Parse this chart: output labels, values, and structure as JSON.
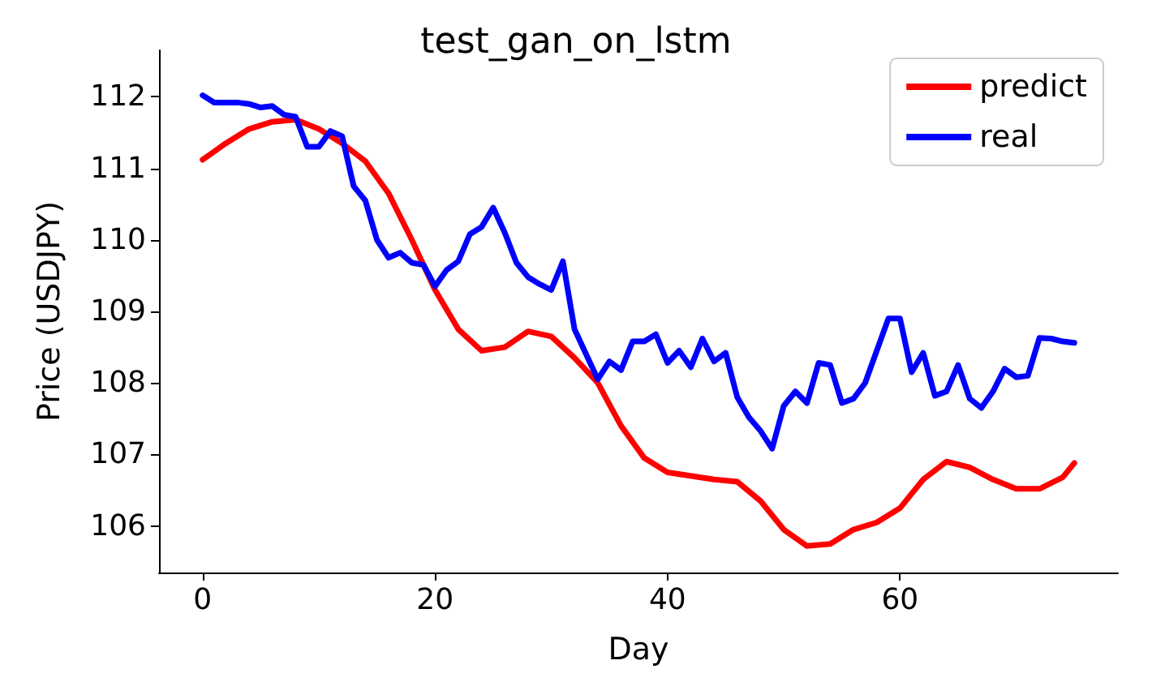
{
  "chart_data": {
    "type": "line",
    "title": "test_gan_on_lstm",
    "xlabel": "Day",
    "ylabel": "Price (USDJPY)",
    "xlim": [
      -3.75,
      78.75
    ],
    "xticks": [
      0,
      20,
      40,
      60
    ],
    "ylim": [
      105.35,
      112.65
    ],
    "yticks": [
      106,
      107,
      108,
      109,
      110,
      111,
      112
    ],
    "legend": "top right",
    "grid": false,
    "marker": "none",
    "line_style": "solid",
    "series": [
      {
        "name": "predict",
        "color": "#ff0000",
        "x": [
          0,
          2,
          4,
          6,
          8,
          10,
          12,
          14,
          16,
          18,
          20,
          22,
          24,
          26,
          28,
          30,
          32,
          34,
          36,
          38,
          40,
          44,
          46,
          48,
          50,
          52,
          54,
          56,
          58,
          60,
          62,
          64,
          66,
          68,
          70,
          72,
          74,
          75
        ],
        "values": [
          111.12,
          111.35,
          111.55,
          111.65,
          111.68,
          111.55,
          111.35,
          111.1,
          110.65,
          110.0,
          109.3,
          108.75,
          108.45,
          108.5,
          108.72,
          108.65,
          108.35,
          108.0,
          107.4,
          106.95,
          106.75,
          106.65,
          106.62,
          106.35,
          105.95,
          105.72,
          105.75,
          105.95,
          106.05,
          106.25,
          106.65,
          106.9,
          106.82,
          106.65,
          106.52,
          106.52,
          106.68,
          106.88
        ]
      },
      {
        "name": "real",
        "color": "#0000ff",
        "x": [
          0,
          1,
          2,
          3,
          4,
          5,
          6,
          7,
          8,
          9,
          10,
          11,
          12,
          13,
          14,
          15,
          16,
          17,
          18,
          19,
          20,
          21,
          22,
          23,
          24,
          25,
          26,
          27,
          28,
          29,
          30,
          31,
          32,
          33,
          34,
          35,
          36,
          37,
          38,
          39,
          40,
          41,
          42,
          43,
          44,
          45,
          46,
          47,
          48,
          49,
          50,
          51,
          52,
          53,
          54,
          55,
          56,
          57,
          58,
          59,
          60,
          61,
          62,
          63,
          64,
          65,
          66,
          67,
          68,
          69,
          70,
          71,
          72,
          73,
          74,
          75
        ],
        "values": [
          112.02,
          111.92,
          111.92,
          111.92,
          111.9,
          111.85,
          111.87,
          111.75,
          111.72,
          111.3,
          111.3,
          111.52,
          111.45,
          110.75,
          110.55,
          110.0,
          109.75,
          109.82,
          109.68,
          109.65,
          109.35,
          109.58,
          109.7,
          110.08,
          110.18,
          110.45,
          110.1,
          109.68,
          109.48,
          109.38,
          109.3,
          109.7,
          108.75,
          108.4,
          108.05,
          108.3,
          108.18,
          108.58,
          108.58,
          108.68,
          108.28,
          108.45,
          108.22,
          108.62,
          108.3,
          108.42,
          107.8,
          107.52,
          107.33,
          107.08,
          107.68,
          107.88,
          107.72,
          108.28,
          108.25,
          107.72,
          107.78,
          108.0,
          108.45,
          108.9,
          108.9,
          108.15,
          108.42,
          107.82,
          107.88,
          108.25,
          107.78,
          107.65,
          107.88,
          108.2,
          108.08,
          108.1,
          108.63,
          108.62,
          108.58,
          108.56
        ]
      }
    ]
  }
}
